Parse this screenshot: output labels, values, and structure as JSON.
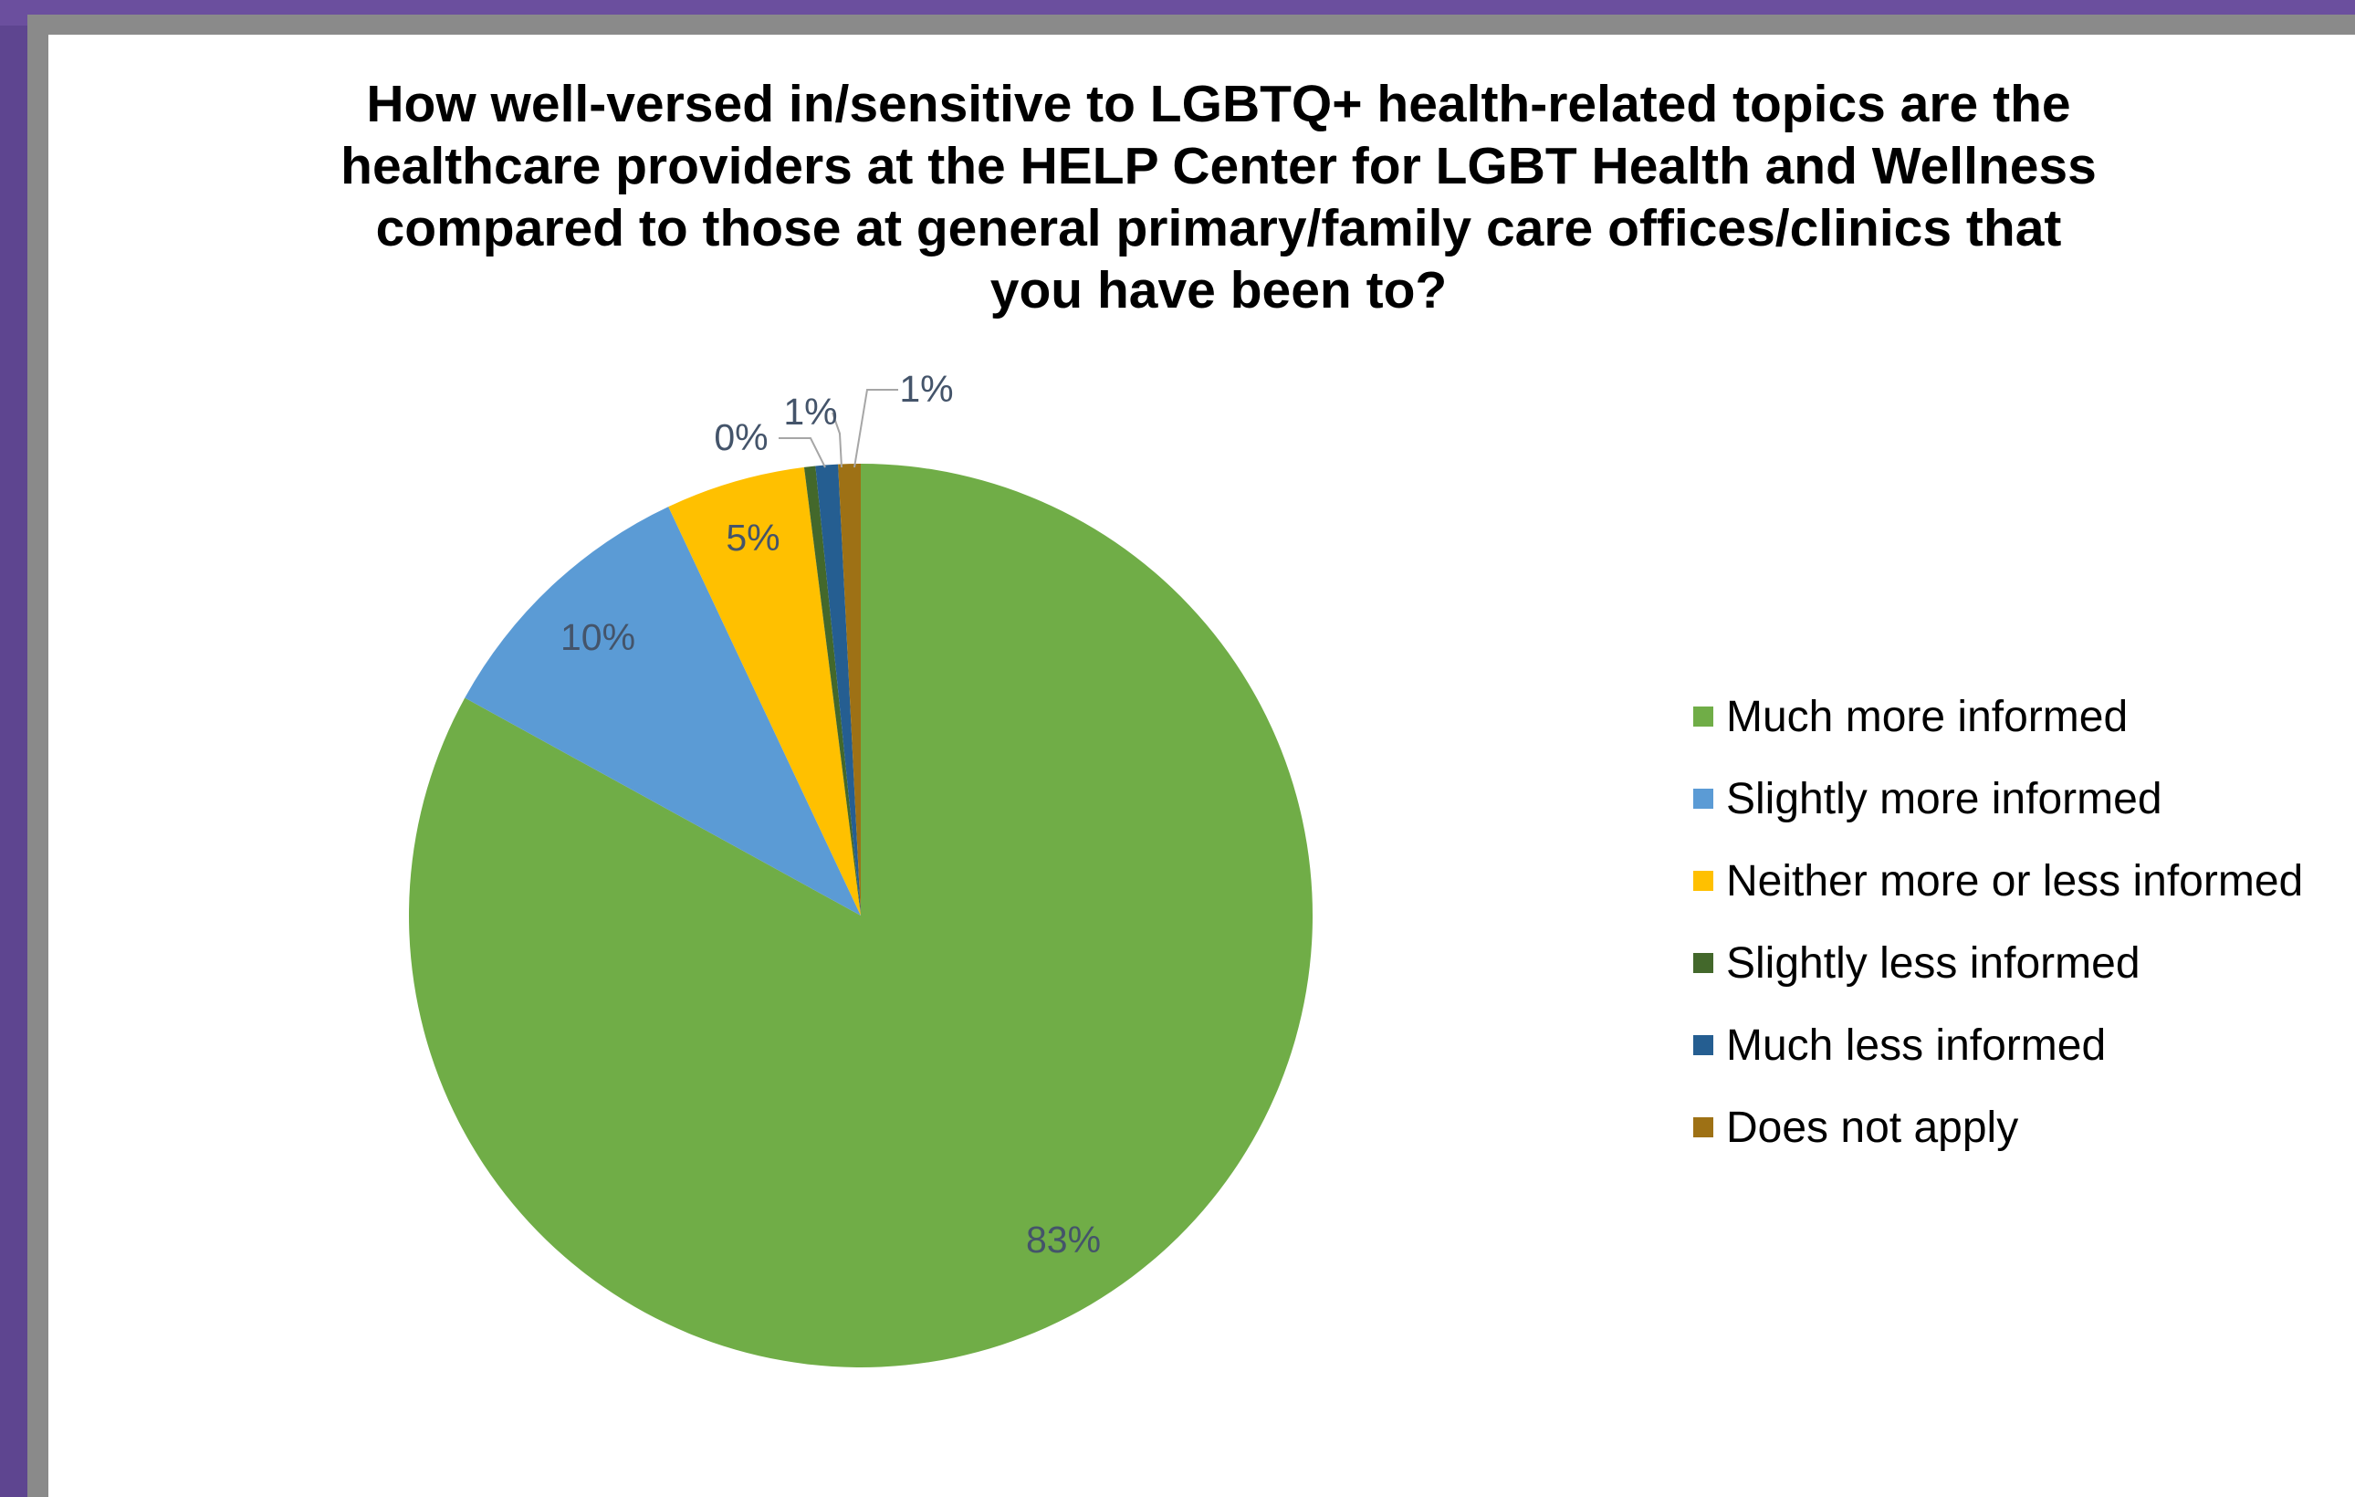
{
  "chart_data": {
    "type": "pie",
    "title": "How well-versed in/sensitive to LGBTQ+ health-related topics are the healthcare providers at the HELP Center for LGBT Health and Wellness compared to those at general primary/family care offices/clinics that you have been to?",
    "title_lines": [
      "How well-versed in/sensitive to LGBTQ+ health-related topics are the",
      "healthcare providers at the HELP Center for LGBT Health and Wellness",
      "compared to those at general primary/family care offices/clinics that",
      "you have been to?"
    ],
    "legend_position": "right",
    "slices": [
      {
        "name": "Much more informed",
        "value": 83,
        "label": "83%",
        "color": "#70ad47"
      },
      {
        "name": "Slightly more informed",
        "value": 10,
        "label": "10%",
        "color": "#5b9bd5"
      },
      {
        "name": "Neither more or less informed",
        "value": 5,
        "label": "5%",
        "color": "#ffc000"
      },
      {
        "name": "Slightly less informed",
        "value": 0.4,
        "label": "0%",
        "color": "#43682b"
      },
      {
        "name": "Much less informed",
        "value": 0.8,
        "label": "1%",
        "color": "#255e91"
      },
      {
        "name": "Does not apply",
        "value": 0.8,
        "label": "1%",
        "color": "#9e7115"
      }
    ]
  }
}
